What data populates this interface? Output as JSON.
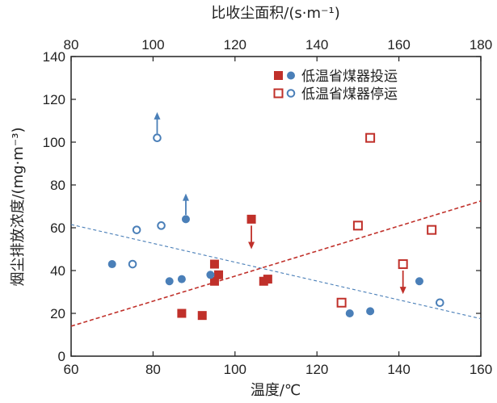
{
  "chart_data": {
    "type": "scatter",
    "xlabel": "温度/℃",
    "x2label": "比收尘面积/(s·m⁻¹)",
    "ylabel": "烟尘排放浓度/(mg·m⁻³)",
    "xlim": [
      60,
      160
    ],
    "x2lim": [
      80,
      180
    ],
    "ylim": [
      0,
      140
    ],
    "xticks": [
      "60",
      "80",
      "100",
      "120",
      "140",
      "160"
    ],
    "x2ticks": [
      "80",
      "100",
      "120",
      "140",
      "160",
      "180"
    ],
    "yticks": [
      "0",
      "20",
      "40",
      "60",
      "80",
      "100",
      "120",
      "140"
    ],
    "colors": {
      "red": "#c0302a",
      "blue": "#4a7fb8"
    },
    "legend": {
      "position": "top-right",
      "items": [
        {
          "label": "低温省煤器投运",
          "markers": [
            "filled-square-red",
            "filled-circle-blue"
          ]
        },
        {
          "label": "低温省煤器停运",
          "markers": [
            "open-square-red",
            "open-circle-blue"
          ]
        }
      ]
    },
    "series": [
      {
        "axis": "temperature",
        "marker": "filled-square",
        "points": [
          [
            87,
            20
          ],
          [
            92,
            19
          ],
          [
            95,
            35
          ],
          [
            95,
            43
          ],
          [
            96,
            38
          ],
          [
            104,
            64
          ],
          [
            107,
            35
          ],
          [
            108,
            36
          ]
        ]
      },
      {
        "axis": "temperature",
        "marker": "open-square",
        "points": [
          [
            126,
            25
          ],
          [
            130,
            61
          ],
          [
            133,
            102
          ],
          [
            141,
            43
          ],
          [
            148,
            59
          ]
        ]
      },
      {
        "axis": "specific_collection_area",
        "marker": "filled-circle",
        "points": [
          [
            90,
            43
          ],
          [
            104,
            35
          ],
          [
            107,
            36
          ],
          [
            108,
            64
          ],
          [
            114,
            38
          ],
          [
            148,
            20
          ],
          [
            153,
            21
          ],
          [
            165,
            35
          ]
        ]
      },
      {
        "axis": "specific_collection_area",
        "marker": "open-circle",
        "points": [
          [
            95,
            43
          ],
          [
            96,
            59
          ],
          [
            101,
            102
          ],
          [
            102,
            61
          ],
          [
            170,
            25
          ]
        ]
      }
    ],
    "trendlines": [
      {
        "axis": "temperature",
        "color": "red",
        "from": [
          60,
          14
        ],
        "to": [
          160,
          72.5
        ]
      },
      {
        "axis": "specific_collection_area",
        "color": "blue",
        "from": [
          80,
          61.5
        ],
        "to": [
          180,
          17.5
        ]
      }
    ],
    "arrows": [
      {
        "axis": "temperature",
        "color": "red",
        "from": [
          104,
          61
        ],
        "to": [
          104,
          50
        ]
      },
      {
        "axis": "temperature",
        "color": "red",
        "from": [
          141,
          40
        ],
        "to": [
          141,
          29
        ]
      },
      {
        "axis": "specific_collection_area",
        "color": "blue",
        "from": [
          101,
          104
        ],
        "to": [
          101,
          114
        ]
      },
      {
        "axis": "specific_collection_area",
        "color": "blue",
        "from": [
          108,
          66
        ],
        "to": [
          108,
          76
        ]
      }
    ]
  }
}
